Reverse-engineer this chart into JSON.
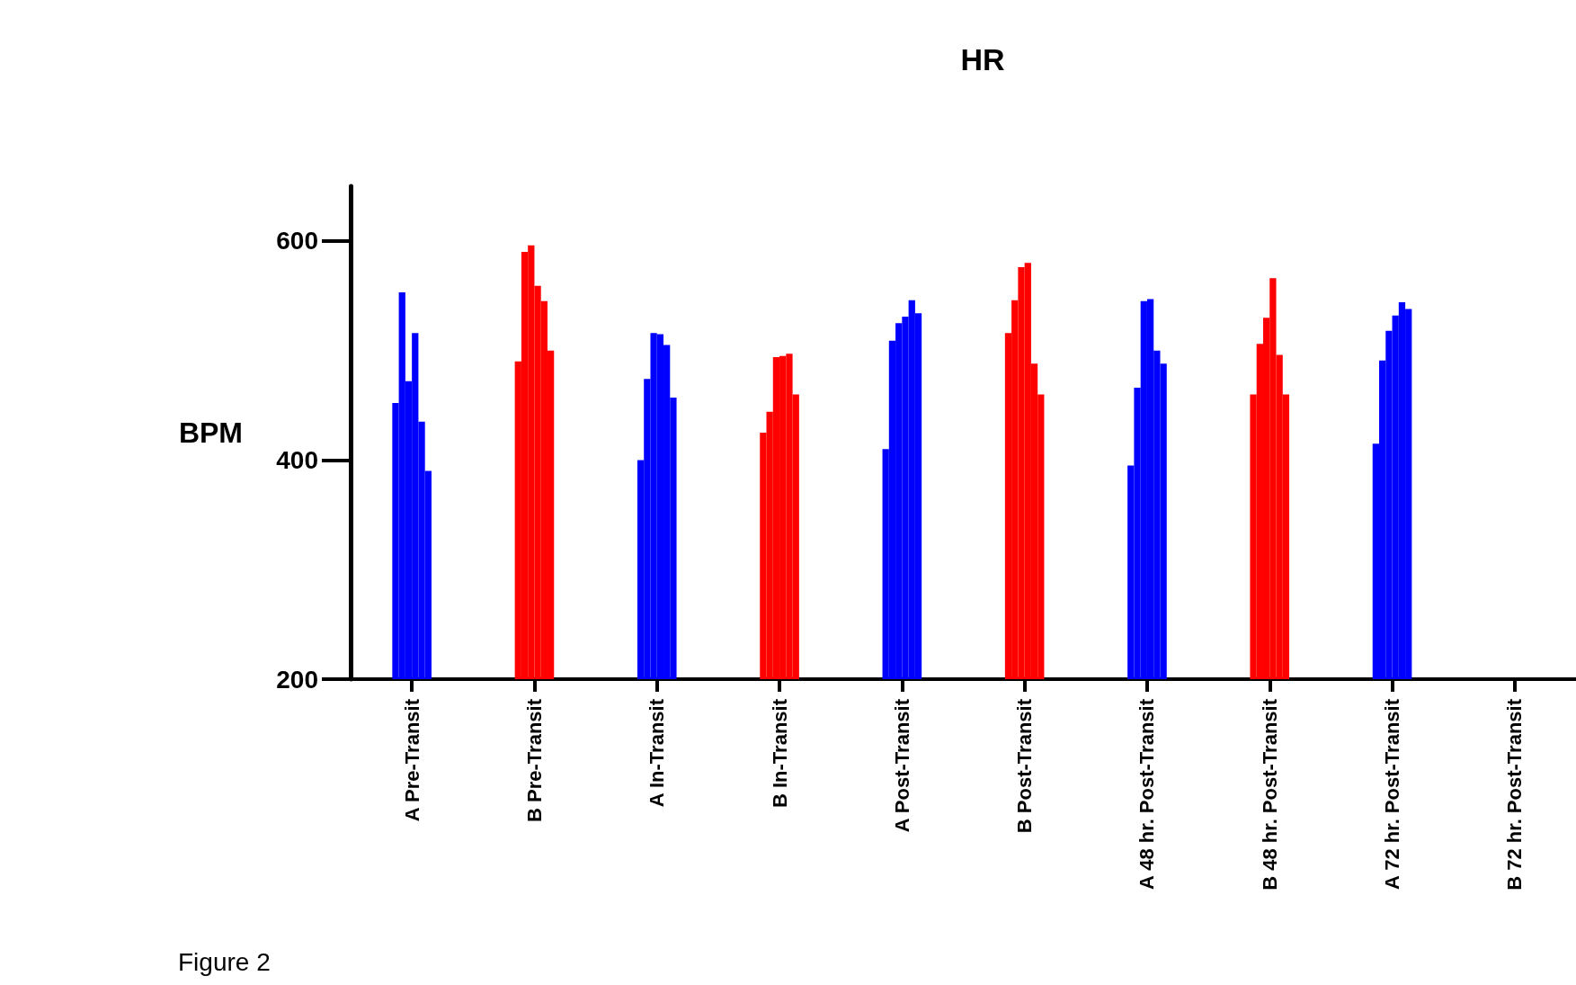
{
  "chart_data": {
    "type": "bar",
    "title": "HR",
    "ylabel": "BPM",
    "categories": [
      "A Pre-Transit",
      "B Pre-Transit",
      "A In-Transit",
      "B In-Transit",
      "A Post-Transit",
      "B Post-Transit",
      "A 48 hr. Post-Transit",
      "B 48 hr. Post-Transit",
      "A 72 hr. Post-Transit",
      "B 72 hr. Post-Transit"
    ],
    "series": [
      {
        "colors": [
          "#0000ff",
          "#ff0000",
          "#0000ff",
          "#ff0000",
          "#0000ff",
          "#ff0000",
          "#0000ff",
          "#ff0000",
          "#0000ff",
          "#ff0000"
        ],
        "values": [
          452,
          490,
          400,
          425,
          410,
          516,
          395,
          460,
          415,
          null
        ]
      },
      {
        "colors": [
          "#0000ff",
          "#ff0000",
          "#0000ff",
          "#ff0000",
          "#0000ff",
          "#ff0000",
          "#0000ff",
          "#ff0000",
          "#0000ff",
          "#ff0000"
        ],
        "values": [
          553,
          590,
          474,
          444,
          509,
          546,
          466,
          506,
          491,
          null
        ]
      },
      {
        "colors": [
          "#0000ff",
          "#ff0000",
          "#0000ff",
          "#ff0000",
          "#0000ff",
          "#ff0000",
          "#0000ff",
          "#ff0000",
          "#0000ff",
          "#ff0000"
        ],
        "values": [
          472,
          596,
          516,
          494,
          525,
          576,
          545,
          530,
          518,
          null
        ]
      },
      {
        "colors": [
          "#0000ff",
          "#ff0000",
          "#0000ff",
          "#ff0000",
          "#0000ff",
          "#ff0000",
          "#0000ff",
          "#ff0000",
          "#0000ff",
          "#ff0000"
        ],
        "values": [
          516,
          559,
          515,
          495,
          531,
          580,
          547,
          566,
          532,
          null
        ]
      },
      {
        "colors": [
          "#0000ff",
          "#ff0000",
          "#0000ff",
          "#ff0000",
          "#0000ff",
          "#ff0000",
          "#0000ff",
          "#ff0000",
          "#0000ff",
          "#ff0000"
        ],
        "values": [
          435,
          545,
          505,
          497,
          546,
          488,
          500,
          496,
          544,
          null
        ]
      },
      {
        "colors": [
          "#0000ff",
          "#ff0000",
          "#0000ff",
          "#ff0000",
          "#0000ff",
          "#ff0000",
          "#0000ff",
          "#ff0000",
          "#0000ff",
          "#ff0000"
        ],
        "values": [
          390,
          500,
          457,
          460,
          534,
          460,
          488,
          460,
          538,
          null
        ]
      }
    ],
    "ylim": [
      200,
      650
    ],
    "yticks": [
      200,
      400,
      600
    ],
    "grid": false,
    "annotations": [
      "Figure 2"
    ]
  }
}
